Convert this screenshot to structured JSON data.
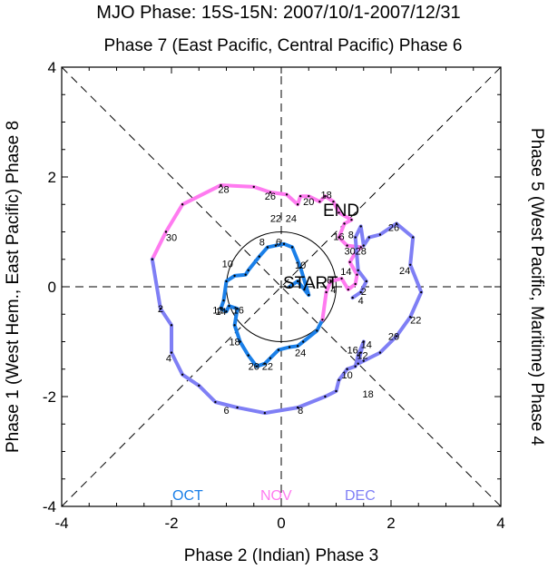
{
  "chart_data": {
    "type": "line",
    "title": "MJO Phase: 15S-15N: 2007/10/1-2007/12/31",
    "subtitle": "Phase 7 (East Pacific, Central Pacific) Phase 6",
    "xlabel": "Phase 2 (Indian) Phase 3",
    "ylabel_left": "Phase 1 (West Hem., East Pacific) Phase 8",
    "ylabel_right": "Phase 5 (West Pacific, Maritime) Phase 4",
    "xlim": [
      -4,
      4
    ],
    "ylim": [
      -4,
      4
    ],
    "xticks": [
      "-4",
      "-2",
      "0",
      "2",
      "4"
    ],
    "yticks": [
      "-4",
      "-2",
      "0",
      "2",
      "4"
    ],
    "unit_circle_radius": 1,
    "start_label": "START",
    "end_label": "END",
    "colors": {
      "oct": "#1a7fe8",
      "nov": "#ff7bf0",
      "dec": "#7f7ff5"
    },
    "series": [
      {
        "name": "OCT",
        "points": [
          [
            0.15,
            0.0
          ],
          [
            0.3,
            0.1
          ],
          [
            0.42,
            -0.05
          ],
          [
            0.5,
            -0.15
          ],
          [
            0.35,
            0.35
          ],
          [
            0.2,
            0.72
          ],
          [
            0.05,
            0.78
          ],
          [
            -0.1,
            0.75
          ],
          [
            -0.25,
            0.72
          ],
          [
            -0.4,
            0.55
          ],
          [
            -0.6,
            0.3
          ],
          [
            -0.65,
            0.22
          ],
          [
            -0.85,
            0.2
          ],
          [
            -1.0,
            0.1
          ],
          [
            -1.05,
            -0.25
          ],
          [
            -1.1,
            -0.4
          ],
          [
            -1.0,
            -0.45
          ],
          [
            -0.95,
            -0.35
          ],
          [
            -0.8,
            -0.4
          ],
          [
            -0.85,
            -0.7
          ],
          [
            -0.75,
            -1.0
          ],
          [
            -0.6,
            -1.25
          ],
          [
            -0.45,
            -1.45
          ],
          [
            -0.3,
            -1.4
          ],
          [
            -0.2,
            -1.3
          ],
          [
            -0.05,
            -1.15
          ],
          [
            0.15,
            -1.1
          ],
          [
            0.3,
            -1.08
          ],
          [
            0.4,
            -1.0
          ],
          [
            0.65,
            -0.8
          ],
          [
            0.75,
            -0.6
          ]
        ],
        "labels": [
          [
            "12",
            -1.15,
            -0.42
          ],
          [
            "14",
            -1.1,
            -0.45
          ],
          [
            "16",
            -0.78,
            -0.42
          ],
          [
            "18",
            -0.85,
            -1.0
          ],
          [
            "20",
            -0.5,
            -1.45
          ],
          [
            "22",
            -0.25,
            -1.45
          ],
          [
            "24",
            0.35,
            -1.2
          ],
          [
            "10",
            -0.98,
            0.42
          ],
          [
            "8",
            -0.35,
            0.82
          ],
          [
            "6",
            -0.05,
            0.82
          ]
        ]
      },
      {
        "name": "NOV",
        "points": [
          [
            0.75,
            -0.6
          ],
          [
            0.82,
            -0.1
          ],
          [
            0.9,
            0.1
          ],
          [
            1.1,
            0.15
          ],
          [
            1.22,
            -0.05
          ],
          [
            1.35,
            0.05
          ],
          [
            1.38,
            0.22
          ],
          [
            1.25,
            0.45
          ],
          [
            1.35,
            0.62
          ],
          [
            1.45,
            0.72
          ],
          [
            1.2,
            0.75
          ],
          [
            1.05,
            0.9
          ],
          [
            1.15,
            1.15
          ],
          [
            1.28,
            1.22
          ],
          [
            1.05,
            1.35
          ],
          [
            0.95,
            1.55
          ],
          [
            0.8,
            1.65
          ],
          [
            0.7,
            1.55
          ],
          [
            0.5,
            1.65
          ],
          [
            0.35,
            1.65
          ],
          [
            0.3,
            1.5
          ],
          [
            0.1,
            1.68
          ],
          [
            -0.2,
            1.72
          ],
          [
            -0.5,
            1.82
          ],
          [
            -1.1,
            1.85
          ],
          [
            -1.8,
            1.5
          ],
          [
            -2.1,
            1.0
          ],
          [
            -2.35,
            0.5
          ]
        ],
        "labels": [
          [
            "28",
            -1.05,
            1.78
          ],
          [
            "26",
            -0.2,
            1.65
          ],
          [
            "20",
            0.5,
            1.55
          ],
          [
            "18",
            0.82,
            1.68
          ],
          [
            "22",
            -0.1,
            1.25
          ],
          [
            "24",
            0.18,
            1.25
          ],
          [
            "30",
            -2.0,
            0.9
          ],
          [
            "14",
            1.18,
            0.28
          ],
          [
            "16",
            1.05,
            0.92
          ],
          [
            "30",
            1.25,
            0.65
          ],
          [
            "28",
            1.45,
            0.65
          ],
          [
            "8",
            1.27,
            0.95
          ],
          [
            "10",
            0.35,
            0.4
          ],
          [
            "6",
            0.88,
            0.12
          ],
          [
            "4",
            0.95,
            -0.05
          ]
        ]
      },
      {
        "name": "DEC",
        "points": [
          [
            -2.35,
            0.5
          ],
          [
            -2.2,
            -0.4
          ],
          [
            -2.0,
            -0.7
          ],
          [
            -2.0,
            -1.2
          ],
          [
            -1.8,
            -1.6
          ],
          [
            -1.5,
            -1.8
          ],
          [
            -1.2,
            -2.1
          ],
          [
            -0.8,
            -2.2
          ],
          [
            -0.3,
            -2.3
          ],
          [
            0.3,
            -2.2
          ],
          [
            0.8,
            -2.0
          ],
          [
            1.0,
            -1.9
          ],
          [
            1.05,
            -1.7
          ],
          [
            1.2,
            -1.5
          ],
          [
            1.35,
            -1.45
          ],
          [
            1.4,
            -1.25
          ],
          [
            1.5,
            -1.0
          ],
          [
            1.45,
            -1.2
          ],
          [
            1.4,
            -1.4
          ],
          [
            1.5,
            -1.35
          ],
          [
            1.8,
            -1.2
          ],
          [
            2.1,
            -0.9
          ],
          [
            2.35,
            -0.55
          ],
          [
            2.55,
            -0.1
          ],
          [
            2.35,
            0.4
          ],
          [
            2.4,
            0.9
          ],
          [
            2.1,
            1.15
          ],
          [
            1.8,
            0.95
          ],
          [
            1.6,
            0.9
          ],
          [
            1.5,
            0.75
          ],
          [
            1.45,
            1.1
          ],
          [
            1.35,
            0.9
          ],
          [
            1.4,
            0.3
          ],
          [
            1.55,
            0.1
          ],
          [
            1.45,
            -0.1
          ],
          [
            1.3,
            -0.2
          ]
        ],
        "labels": [
          [
            "2",
            -2.2,
            -0.4
          ],
          [
            "4",
            -2.05,
            -1.3
          ],
          [
            "6",
            -1.0,
            -2.25
          ],
          [
            "8",
            0.35,
            -2.25
          ],
          [
            "10",
            1.2,
            -1.6
          ],
          [
            "18",
            1.58,
            -1.95
          ],
          [
            "12",
            1.48,
            -1.25
          ],
          [
            "14",
            1.55,
            -1.05
          ],
          [
            "16",
            1.3,
            -1.15
          ],
          [
            "20",
            2.05,
            -0.9
          ],
          [
            "22",
            2.45,
            -0.6
          ],
          [
            "24",
            2.25,
            0.3
          ],
          [
            "26",
            2.05,
            1.08
          ],
          [
            "2",
            1.5,
            -0.08
          ],
          [
            "4",
            1.45,
            -0.25
          ]
        ]
      }
    ]
  }
}
